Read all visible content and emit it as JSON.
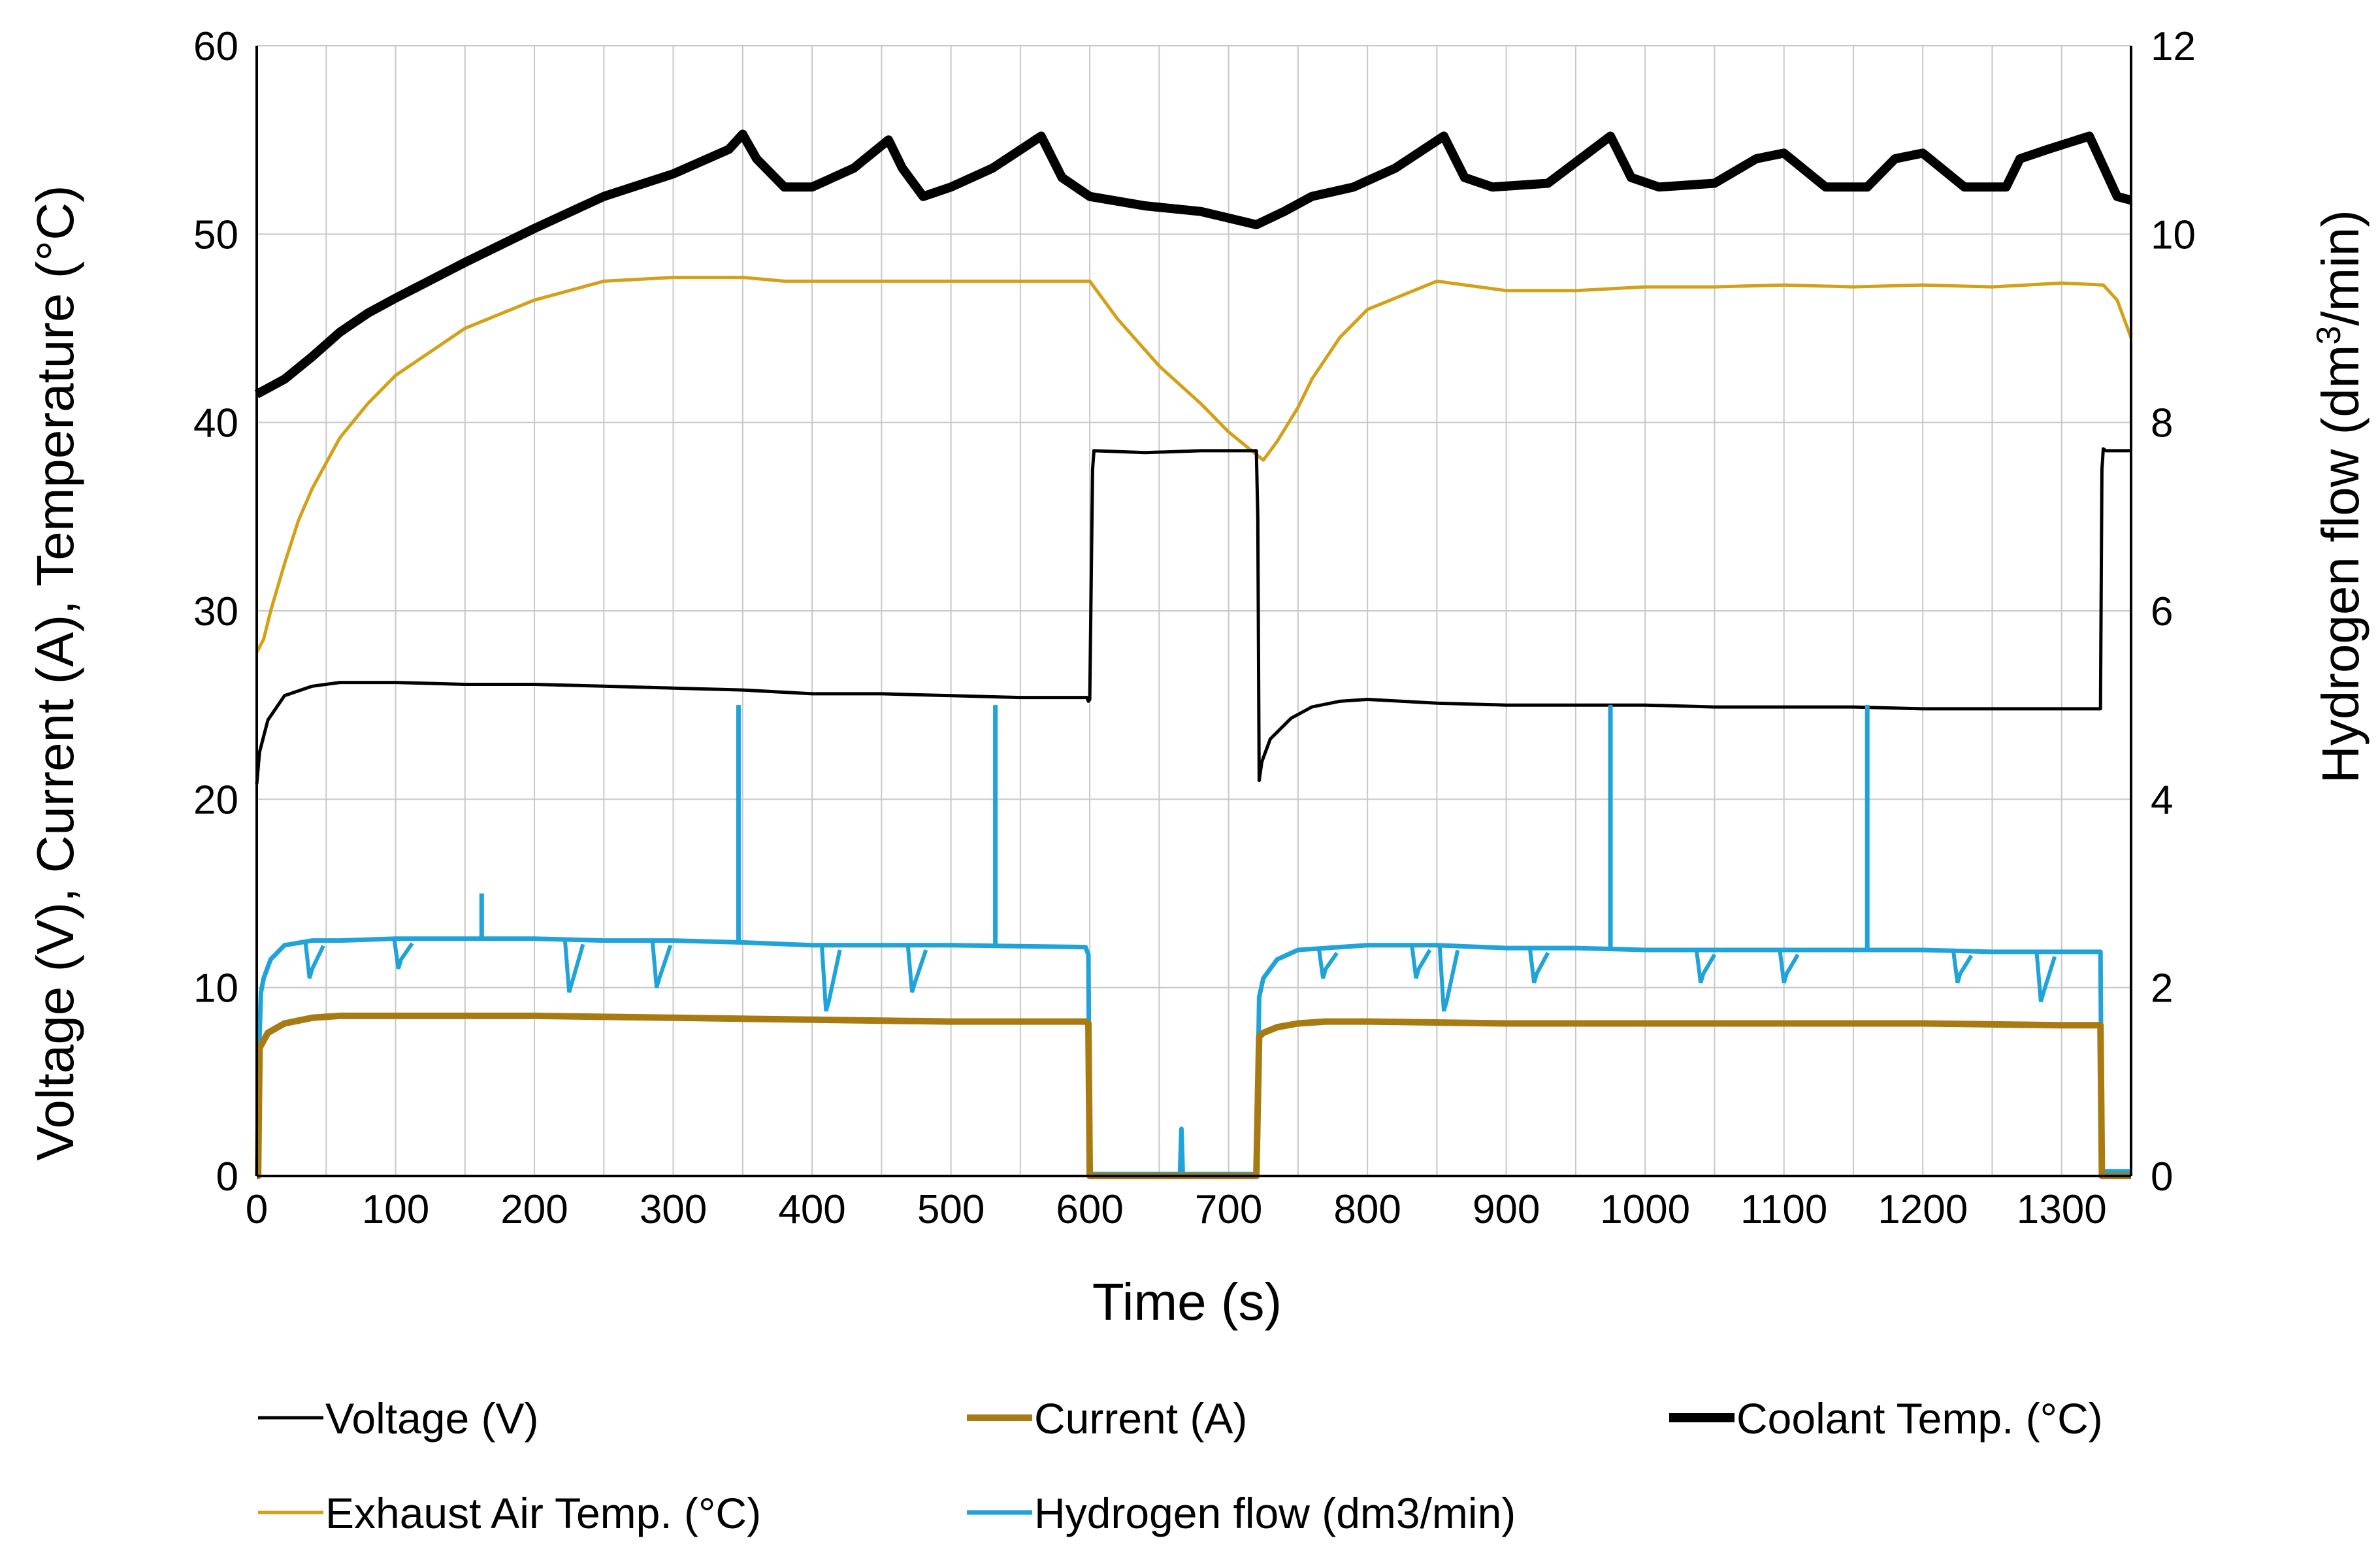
{
  "chart_data": {
    "type": "line",
    "title": "",
    "xlabel": "Time (s)",
    "ylabel": "Voltage (V), Current (A), Temperature (°C)",
    "y2label_prefix": "Hydrogen flow (dm",
    "y2label_sup": "3",
    "y2label_suffix": "/min)",
    "xlim": [
      0,
      1350
    ],
    "ylim": [
      0,
      60
    ],
    "y2lim": [
      0,
      12
    ],
    "grid": true,
    "legend_position": "bottom",
    "x_ticks": [
      "0",
      "100",
      "200",
      "300",
      "400",
      "500",
      "600",
      "700",
      "800",
      "900",
      "1000",
      "1100",
      "1200",
      "1300"
    ],
    "y_ticks": [
      "0",
      "10",
      "20",
      "30",
      "40",
      "50",
      "60"
    ],
    "y2_ticks": [
      "0",
      "2",
      "4",
      "6",
      "8",
      "10",
      "12"
    ],
    "series": [
      {
        "name": "Voltage  (V)",
        "axis": "left",
        "color": "#000000",
        "width": "thin",
        "x": [
          0,
          2,
          8,
          20,
          40,
          60,
          100,
          150,
          200,
          250,
          300,
          350,
          400,
          450,
          500,
          550,
          598,
          599,
          600,
          602,
          603,
          640,
          680,
          720,
          721,
          722,
          724,
          730,
          745,
          760,
          780,
          800,
          850,
          900,
          950,
          1000,
          1050,
          1100,
          1150,
          1200,
          1250,
          1300,
          1320,
          1328,
          1329,
          1330,
          1332,
          1350
        ],
        "values": [
          20.8,
          22.5,
          24.2,
          25.5,
          26.0,
          26.2,
          26.2,
          26.1,
          26.1,
          26.0,
          25.9,
          25.8,
          25.6,
          25.6,
          25.5,
          25.4,
          25.4,
          25.2,
          25.3,
          37.5,
          38.5,
          38.4,
          38.5,
          38.5,
          35.0,
          21.0,
          22.0,
          23.2,
          24.3,
          24.9,
          25.2,
          25.3,
          25.1,
          25.0,
          25.0,
          25.0,
          24.9,
          24.9,
          24.9,
          24.8,
          24.8,
          24.8,
          24.8,
          24.8,
          37.5,
          38.6,
          38.5,
          38.5
        ]
      },
      {
        "name": "Current  (A)",
        "axis": "left",
        "color": "#a87b12",
        "width": "thick",
        "x": [
          0,
          1,
          2,
          8,
          20,
          40,
          60,
          100,
          200,
          300,
          400,
          500,
          597,
          599,
          600,
          610,
          700,
          719,
          720,
          722,
          725,
          735,
          750,
          770,
          800,
          900,
          1000,
          1100,
          1200,
          1300,
          1325,
          1328,
          1329,
          1350
        ],
        "values": [
          0,
          0,
          6.8,
          7.6,
          8.1,
          8.4,
          8.5,
          8.5,
          8.5,
          8.4,
          8.3,
          8.2,
          8.2,
          8.1,
          0,
          0,
          0,
          0,
          0,
          7.4,
          7.6,
          7.9,
          8.1,
          8.2,
          8.2,
          8.1,
          8.1,
          8.1,
          8.1,
          8.0,
          8.0,
          8.0,
          0,
          0
        ]
      },
      {
        "name": "Coolant Temp. (°C)",
        "axis": "left",
        "color": "#000000",
        "width": "thicker",
        "x": [
          0,
          20,
          40,
          60,
          80,
          100,
          150,
          200,
          250,
          300,
          340,
          350,
          360,
          380,
          400,
          430,
          455,
          465,
          480,
          500,
          530,
          565,
          580,
          600,
          640,
          680,
          720,
          740,
          760,
          790,
          820,
          855,
          870,
          890,
          930,
          975,
          990,
          1010,
          1050,
          1080,
          1100,
          1130,
          1160,
          1180,
          1200,
          1230,
          1260,
          1270,
          1290,
          1320,
          1340,
          1350
        ],
        "values": [
          41.5,
          42.3,
          43.5,
          44.8,
          45.8,
          46.6,
          48.5,
          50.3,
          52.0,
          53.2,
          54.5,
          55.3,
          54.0,
          52.5,
          52.5,
          53.5,
          55.0,
          53.5,
          52.0,
          52.5,
          53.5,
          55.2,
          53.0,
          52.0,
          51.5,
          51.2,
          50.5,
          51.2,
          52.0,
          52.5,
          53.5,
          55.2,
          53.0,
          52.5,
          52.7,
          55.2,
          53.0,
          52.5,
          52.7,
          54.0,
          54.3,
          52.5,
          52.5,
          54.0,
          54.3,
          52.5,
          52.5,
          54.0,
          54.5,
          55.2,
          52.0,
          51.8
        ]
      },
      {
        "name": "Exhaust Air Temp.  (°C)",
        "axis": "left",
        "color": "#d4a017",
        "width": "thin",
        "x": [
          0,
          5,
          10,
          20,
          30,
          40,
          60,
          80,
          100,
          120,
          150,
          200,
          250,
          300,
          350,
          380,
          400,
          450,
          500,
          550,
          590,
          600,
          620,
          650,
          680,
          700,
          720,
          725,
          735,
          750,
          760,
          780,
          800,
          850,
          900,
          950,
          1000,
          1050,
          1100,
          1150,
          1200,
          1250,
          1300,
          1330,
          1340,
          1350
        ],
        "values": [
          27.8,
          28.5,
          30.0,
          32.5,
          34.8,
          36.5,
          39.2,
          41.0,
          42.5,
          43.5,
          45.0,
          46.5,
          47.5,
          47.7,
          47.7,
          47.5,
          47.5,
          47.5,
          47.5,
          47.5,
          47.5,
          47.5,
          45.5,
          43.0,
          41.0,
          39.5,
          38.3,
          38.0,
          39.0,
          40.8,
          42.3,
          44.5,
          46.0,
          47.5,
          47.0,
          47.0,
          47.2,
          47.2,
          47.3,
          47.2,
          47.3,
          47.2,
          47.4,
          47.3,
          46.5,
          44.5
        ]
      },
      {
        "name": "Hydrogen flow  (dm3/min)",
        "axis": "right",
        "color": "#1fa3d9",
        "width": "medium",
        "x": [
          0,
          1,
          2,
          3,
          5,
          10,
          20,
          40,
          60,
          100,
          150,
          200,
          250,
          300,
          350,
          400,
          450,
          500,
          550,
          597,
          599,
          600,
          610,
          660,
          665,
          666,
          667,
          700,
          719,
          720,
          722,
          725,
          735,
          750,
          800,
          850,
          900,
          950,
          1000,
          1050,
          1100,
          1150,
          1200,
          1250,
          1300,
          1328,
          1329,
          1330,
          1350
        ],
        "values": [
          0,
          0,
          1.5,
          1.95,
          2.1,
          2.3,
          2.45,
          2.5,
          2.5,
          2.52,
          2.52,
          2.52,
          2.5,
          2.5,
          2.48,
          2.45,
          2.45,
          2.45,
          2.44,
          2.43,
          2.35,
          0.02,
          0.02,
          0.02,
          0.02,
          0.5,
          0.02,
          0.02,
          0.02,
          0.02,
          1.9,
          2.1,
          2.3,
          2.4,
          2.45,
          2.45,
          2.42,
          2.42,
          2.4,
          2.4,
          2.4,
          2.4,
          2.4,
          2.38,
          2.38,
          2.38,
          0.05,
          0.05,
          0.05
        ]
      }
    ],
    "hydrogen_spikes": [
      {
        "x": 162,
        "value": 3.0
      },
      {
        "x": 347,
        "value": 5.0
      },
      {
        "x": 532,
        "value": 5.0
      },
      {
        "x": 975,
        "value": 5.0
      },
      {
        "x": 1160,
        "value": 5.0
      }
    ],
    "hydrogen_dips": [
      {
        "x": 38,
        "value": 2.1
      },
      {
        "x": 102,
        "value": 2.2
      },
      {
        "x": 225,
        "value": 1.95
      },
      {
        "x": 288,
        "value": 2.0
      },
      {
        "x": 410,
        "value": 1.75
      },
      {
        "x": 472,
        "value": 1.95
      },
      {
        "x": 768,
        "value": 2.1
      },
      {
        "x": 835,
        "value": 2.1
      },
      {
        "x": 855,
        "value": 1.75
      },
      {
        "x": 920,
        "value": 2.05
      },
      {
        "x": 1040,
        "value": 2.05
      },
      {
        "x": 1100,
        "value": 2.05
      },
      {
        "x": 1225,
        "value": 2.05
      },
      {
        "x": 1285,
        "value": 1.85
      }
    ]
  }
}
